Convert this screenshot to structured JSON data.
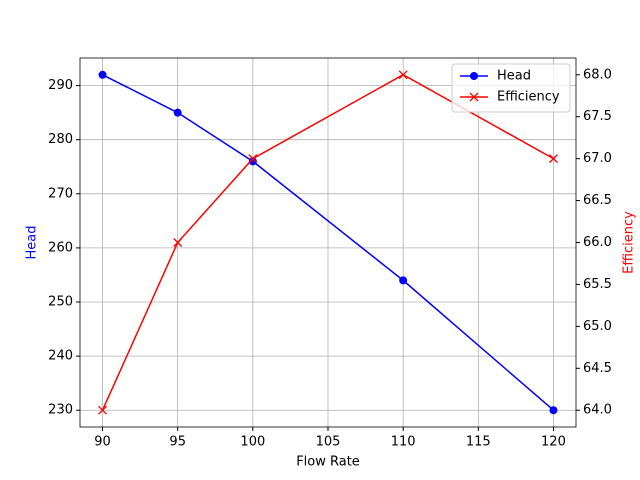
{
  "chart_data": {
    "type": "line",
    "x": [
      90,
      95,
      100,
      110,
      120
    ],
    "series": [
      {
        "name": "Head",
        "color": "#0000ff",
        "marker": "o",
        "values": [
          292,
          285,
          276,
          254,
          230
        ]
      },
      {
        "name": "Efficiency",
        "color": "#ff0000",
        "marker": "x",
        "axis": "y2",
        "values": [
          64,
          66,
          67,
          68,
          67
        ]
      }
    ],
    "xlabel": "Flow Rate",
    "ylabel": "Head",
    "y2label": "Efficiency",
    "xlim": [
      88.5,
      121.5
    ],
    "xticks": [
      90,
      95,
      100,
      105,
      110,
      115,
      120
    ],
    "ylim": [
      226.9,
      295.1
    ],
    "yticks": [
      230,
      240,
      250,
      260,
      270,
      280,
      290
    ],
    "y2lim": [
      63.8,
      68.2
    ],
    "y2ticks": [
      {
        "value": 64,
        "label": "64.0"
      },
      64.5,
      {
        "value": 65,
        "label": "65.0"
      },
      65.5,
      {
        "value": 66,
        "label": "66.0"
      },
      66.5,
      {
        "value": 67,
        "label": "67.0"
      },
      67.5,
      {
        "value": 68,
        "label": "68.0"
      }
    ],
    "grid": true,
    "legend": "upper right"
  }
}
